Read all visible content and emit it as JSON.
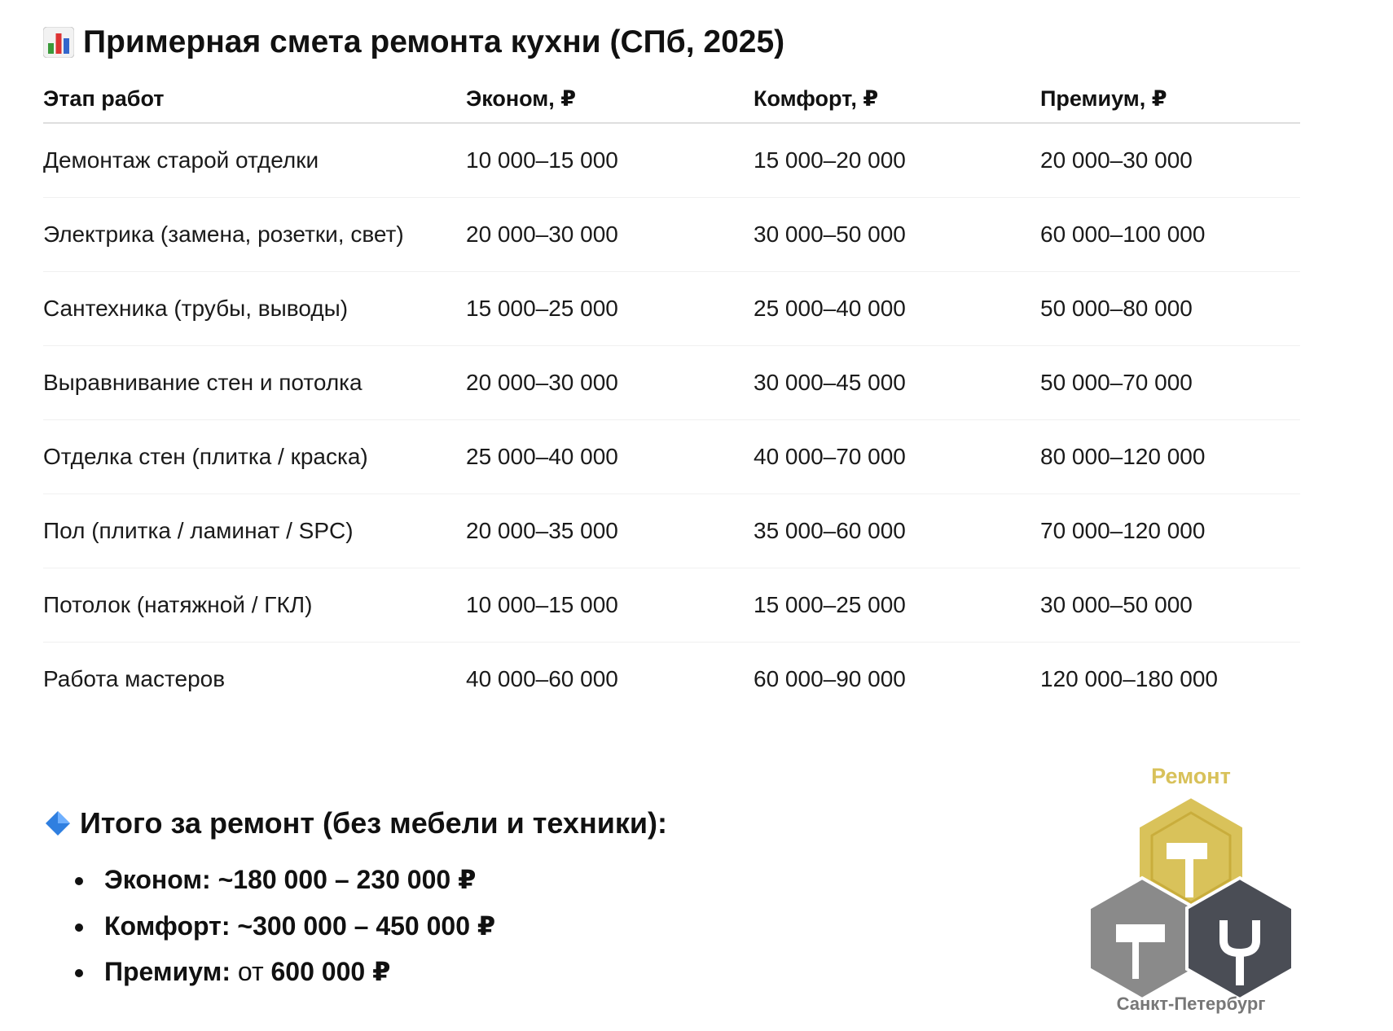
{
  "title": "Примерная смета ремонта кухни (СПб, 2025)",
  "table": {
    "headers": [
      "Этап работ",
      "Эконом, ₽",
      "Комфорт, ₽",
      "Премиум, ₽"
    ],
    "rows": [
      [
        "Демонтаж старой отделки",
        "10 000–15 000",
        "15 000–20 000",
        "20 000–30 000"
      ],
      [
        "Электрика (замена, розетки, свет)",
        "20 000–30 000",
        "30 000–50 000",
        "60 000–100 000"
      ],
      [
        "Сантехника (трубы, выводы)",
        "15 000–25 000",
        "25 000–40 000",
        "50 000–80 000"
      ],
      [
        "Выравнивание стен и потолка",
        "20 000–30 000",
        "30 000–45 000",
        "50 000–70 000"
      ],
      [
        "Отделка стен (плитка / краска)",
        "25 000–40 000",
        "40 000–70 000",
        "80 000–120 000"
      ],
      [
        "Пол (плитка / ламинат / SPC)",
        "20 000–35 000",
        "35 000–60 000",
        "70 000–120 000"
      ],
      [
        "Потолок (натяжной / ГКЛ)",
        "10 000–15 000",
        "15 000–25 000",
        "30 000–50 000"
      ],
      [
        "Работа мастеров",
        "40 000–60 000",
        "60 000–90 000",
        "120 000–180 000"
      ]
    ]
  },
  "totals": {
    "heading": "Итого за ремонт (без мебели и техники):",
    "items": [
      {
        "label": "Эконом:",
        "value": "~180 000 – 230 000 ₽"
      },
      {
        "label": "Комфорт:",
        "value": "~300 000 – 450 000 ₽"
      },
      {
        "label": "Премиум:",
        "prefix": "от",
        "value": "600 000 ₽"
      }
    ]
  },
  "logo": {
    "top": "Ремонт",
    "bottom": "Санкт-Петербург"
  }
}
